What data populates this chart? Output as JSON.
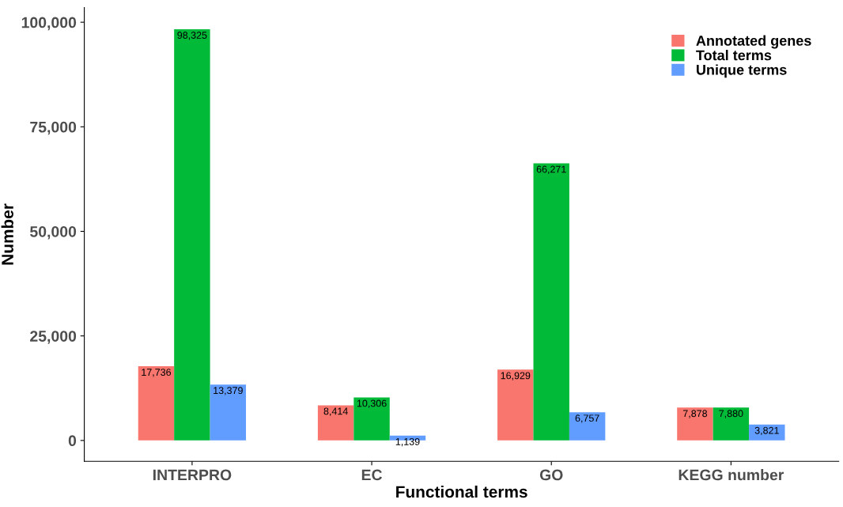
{
  "chart_data": {
    "type": "bar",
    "xlabel": "Functional terms",
    "ylabel": "Number",
    "categories": [
      "INTERPRO",
      "EC",
      "GO",
      "KEGG number"
    ],
    "series": [
      {
        "name": "Annotated genes",
        "color": "#f8766d",
        "values": [
          17736,
          8414,
          16929,
          7878
        ],
        "value_labels": [
          "17,736",
          "8,414",
          "16,929",
          "7,878"
        ]
      },
      {
        "name": "Total terms",
        "color": "#00ba38",
        "values": [
          98325,
          10306,
          66271,
          7880
        ],
        "value_labels": [
          "98,325",
          "10,306",
          "66,271",
          "7,880"
        ]
      },
      {
        "name": "Unique terms",
        "color": "#619cff",
        "values": [
          13379,
          1139,
          6757,
          3821
        ],
        "value_labels": [
          "13,379",
          "1,139",
          "6,757",
          "3,821"
        ]
      }
    ],
    "ylim": [
      -5000,
      103500
    ],
    "yticks": [
      {
        "value": 0,
        "label": "0"
      },
      {
        "value": 25000,
        "label": "25,000"
      },
      {
        "value": 50000,
        "label": "50,000"
      },
      {
        "value": 75000,
        "label": "75,000"
      },
      {
        "value": 100000,
        "label": "100,000"
      }
    ],
    "grid": false,
    "legend": "top right"
  }
}
